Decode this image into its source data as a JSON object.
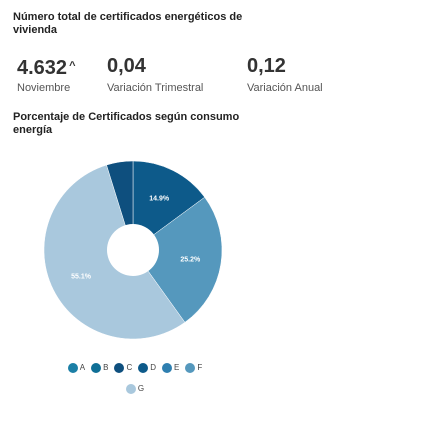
{
  "header": {
    "title": "Número total de certificados energéticos de\nvivienda"
  },
  "kpis": [
    {
      "value": "4.632",
      "trend": "up",
      "trend_symbol": "^",
      "label": "Noviembre"
    },
    {
      "value": "0,04",
      "label": "Variación Trimestral"
    },
    {
      "value": "0,12",
      "label": "Variación Anual"
    }
  ],
  "chart_data": {
    "type": "pie",
    "title": "Porcentaje de Certificados según consumo\nenergía",
    "inner_hole": true,
    "slices": [
      {
        "category": "D",
        "value": 14.9,
        "label": "14.9%",
        "color": "#0d5a8a"
      },
      {
        "category": "F",
        "value": 25.2,
        "label": "25.2%",
        "color": "#5598bd"
      },
      {
        "category": "G",
        "value": 55.1,
        "label": "55.1%",
        "color": "#a9c8dd"
      },
      {
        "category": "C",
        "value": 4.8,
        "label": "",
        "color": "#0e4f7e"
      }
    ],
    "legend": {
      "placement": "bottom",
      "items": [
        {
          "label": "A",
          "color": "#1b7fa6"
        },
        {
          "label": "B",
          "color": "#0f6f96"
        },
        {
          "label": "C",
          "color": "#0e4f7e"
        },
        {
          "label": "D",
          "color": "#0d5a8a"
        },
        {
          "label": "E",
          "color": "#2e7fb0"
        },
        {
          "label": "F",
          "color": "#5598bd"
        },
        {
          "label": "G",
          "color": "#a9c8dd"
        }
      ]
    }
  }
}
